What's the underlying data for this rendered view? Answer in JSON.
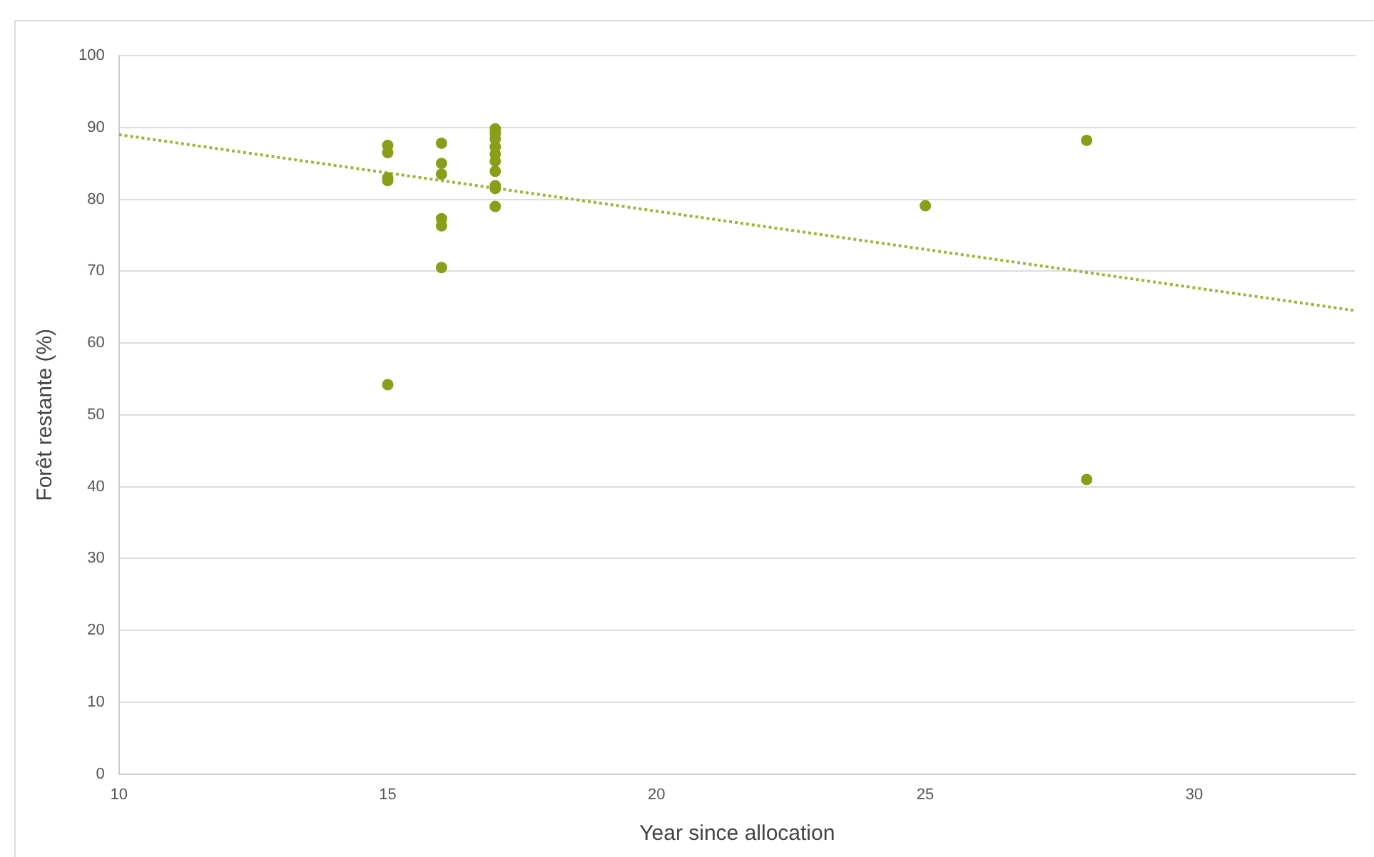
{
  "chart_data": {
    "type": "scatter",
    "xlabel": "Year since allocation",
    "ylabel": "Forêt restante (%)",
    "xlim": [
      10,
      33
    ],
    "xticks": [
      10,
      15,
      20,
      25,
      30
    ],
    "ylim": [
      0,
      100
    ],
    "yticks": [
      0,
      10,
      20,
      30,
      40,
      50,
      60,
      70,
      80,
      90,
      100
    ],
    "grid": "y",
    "legend": false,
    "marker": "circle",
    "series": [
      {
        "type": "scatter",
        "color": "#8a9e1a",
        "x": [
          15,
          15,
          15,
          15,
          15,
          16,
          16,
          16,
          16,
          16,
          16,
          17,
          17,
          17,
          17,
          17,
          17,
          17,
          17,
          17,
          17,
          25,
          28,
          28
        ],
        "values": [
          87.5,
          86.5,
          83,
          82.6,
          54.2,
          87.8,
          85,
          83.5,
          77.3,
          76.3,
          70.5,
          89.8,
          89.2,
          88.4,
          87.3,
          86.3,
          85.3,
          83.9,
          81.9,
          81.5,
          79,
          79.1,
          88.2,
          41
        ]
      },
      {
        "type": "line",
        "color": "#9db53a",
        "line_style": "dotted",
        "marker": "none",
        "x": [
          10,
          33
        ],
        "values": [
          89,
          64.5
        ]
      }
    ]
  }
}
